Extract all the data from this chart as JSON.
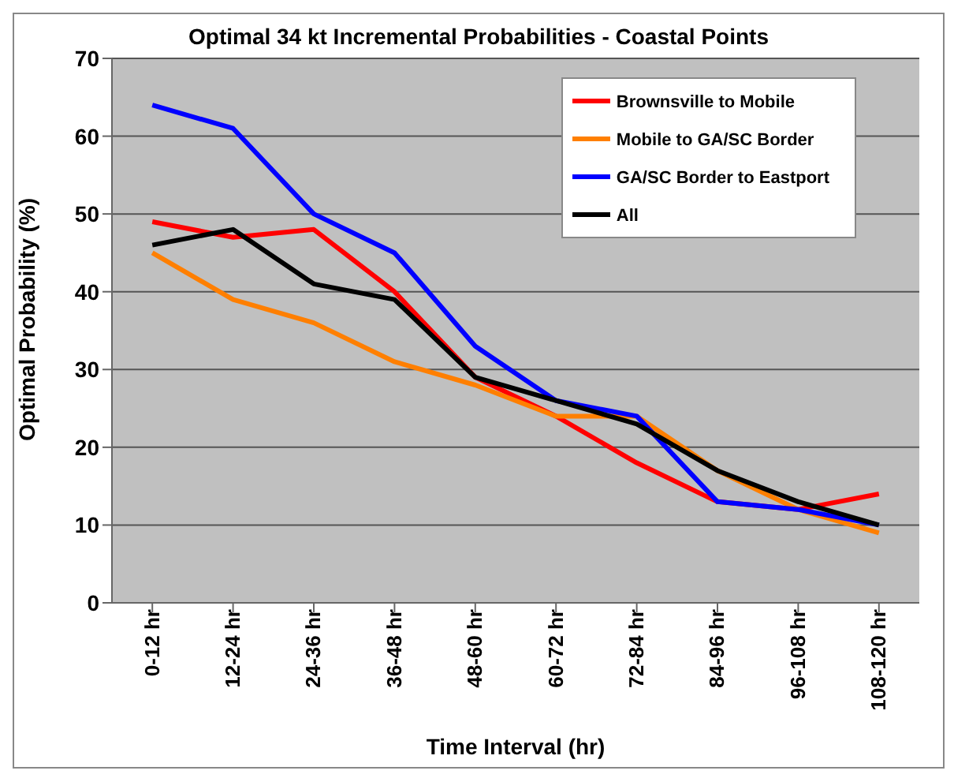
{
  "chart_data": {
    "type": "line",
    "title": "Optimal 34 kt Incremental Probabilities - Coastal Points",
    "xlabel": "Time Interval (hr)",
    "ylabel": "Optimal Probability (%)",
    "categories": [
      "0-12 hr",
      "12-24 hr",
      "24-36 hr",
      "36-48 hr",
      "48-60 hr",
      "60-72 hr",
      "72-84 hr",
      "84-96 hr",
      "96-108 hr",
      "108-120 hr"
    ],
    "series": [
      {
        "name": "Brownsville to Mobile",
        "color": "#ff0000",
        "values": [
          49,
          47,
          48,
          40,
          29,
          24,
          18,
          13,
          12,
          14
        ]
      },
      {
        "name": "Mobile to GA/SC Border",
        "color": "#ff7f00",
        "values": [
          45,
          39,
          36,
          31,
          28,
          24,
          24,
          17,
          12,
          9
        ]
      },
      {
        "name": "GA/SC Border to Eastport",
        "color": "#0000ff",
        "values": [
          64,
          61,
          50,
          45,
          33,
          26,
          24,
          13,
          12,
          10
        ]
      },
      {
        "name": "All",
        "color": "#000000",
        "values": [
          46,
          48,
          41,
          39,
          29,
          26,
          23,
          17,
          13,
          10
        ]
      }
    ],
    "ylim": [
      0,
      70
    ],
    "yticks": [
      0,
      10,
      20,
      30,
      40,
      50,
      60,
      70
    ],
    "grid": "y",
    "legend": "top right",
    "marker": "none",
    "line_style": "solid"
  }
}
